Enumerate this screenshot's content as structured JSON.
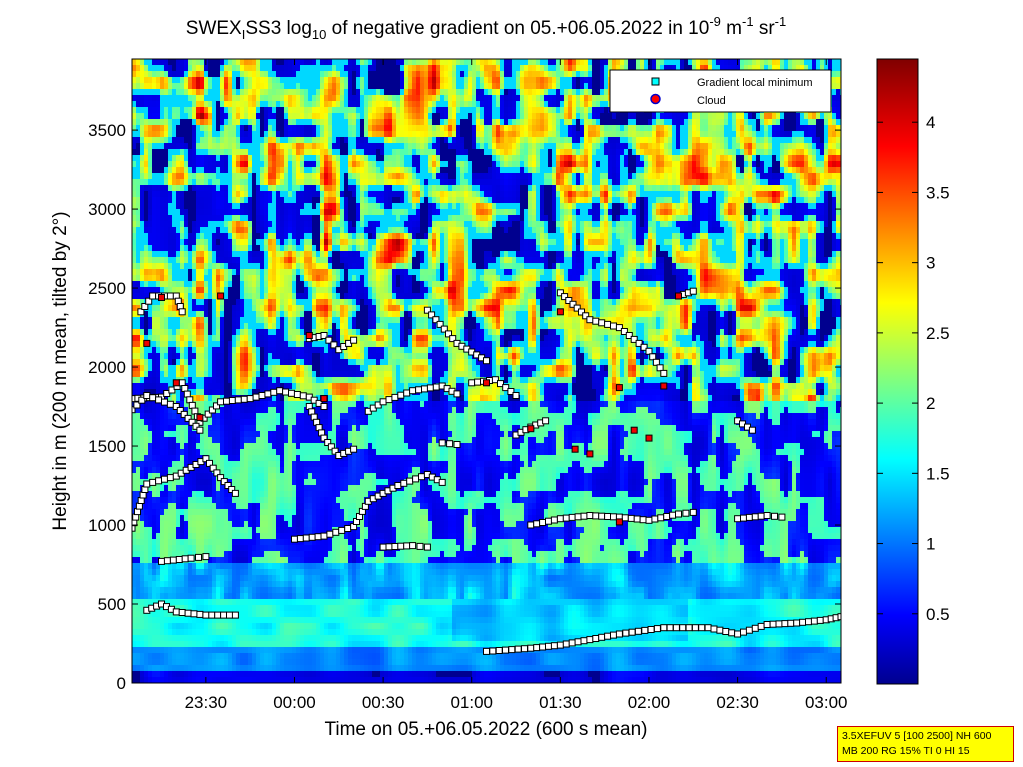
{
  "chart_data": {
    "type": "heatmap",
    "title_parts": {
      "prefix": "SWEX",
      "prefix_sub": "I",
      "name": "SS3 log",
      "log_sub": "10",
      "middle": " of negative gradient on 05.+06.05.2022 in 10",
      "exp1": "-9",
      "m": " m",
      "exp2": "-1",
      "sr": " sr",
      "exp3": "-1"
    },
    "xlabel": "Time on 05.+06.05.2022 (600 s mean)",
    "ylabel": "Height in m (200 m mean, tilted by 2°)",
    "x_range": [
      "23:05",
      "03:05"
    ],
    "x_ticks": [
      "23:30",
      "00:00",
      "00:30",
      "01:00",
      "01:30",
      "02:00",
      "02:30",
      "03:00"
    ],
    "y_range": [
      0,
      3950
    ],
    "y_ticks": [
      0,
      500,
      1000,
      1500,
      2000,
      2500,
      3000,
      3500
    ],
    "colorbar": {
      "range": [
        0,
        4.45
      ],
      "ticks": [
        "0.5",
        "1",
        "1.5",
        "2",
        "2.5",
        "3",
        "3.5",
        "4"
      ],
      "colormap": "jet"
    },
    "legend": {
      "position": "top-right",
      "entries": [
        {
          "label": "Gradient local minimum",
          "marker": "square",
          "color": "#00ffff"
        },
        {
          "label": "Cloud",
          "marker": "circle",
          "color": "#ff0000"
        }
      ]
    },
    "gradient_minimum_tracks": [
      {
        "points": [
          [
            "23:05",
            1800
          ],
          [
            "23:15",
            1810
          ],
          [
            "23:22",
            1900
          ],
          [
            "23:28",
            1650
          ],
          [
            "23:35",
            1780
          ],
          [
            "23:45",
            1800
          ],
          [
            "23:55",
            1850
          ],
          [
            "00:05",
            1810
          ],
          [
            "00:10",
            1750
          ]
        ]
      },
      {
        "points": [
          [
            "23:05",
            1730
          ],
          [
            "23:10",
            1820
          ],
          [
            "23:20",
            1750
          ],
          [
            "23:28",
            1600
          ]
        ]
      },
      {
        "points": [
          [
            "23:05",
            980
          ],
          [
            "23:10",
            1260
          ],
          [
            "23:20",
            1310
          ],
          [
            "23:30",
            1420
          ],
          [
            "23:35",
            1300
          ],
          [
            "23:40",
            1200
          ]
        ]
      },
      {
        "points": [
          [
            "23:10",
            460
          ],
          [
            "23:15",
            500
          ],
          [
            "23:20",
            450
          ],
          [
            "23:30",
            430
          ],
          [
            "23:40",
            430
          ]
        ]
      },
      {
        "points": [
          [
            "23:15",
            770
          ],
          [
            "23:25",
            790
          ],
          [
            "23:30",
            800
          ]
        ]
      },
      {
        "points": [
          [
            "23:08",
            2350
          ],
          [
            "23:12",
            2450
          ],
          [
            "23:20",
            2450
          ],
          [
            "23:22",
            2350
          ]
        ]
      },
      {
        "points": [
          [
            "00:00",
            910
          ],
          [
            "00:10",
            930
          ],
          [
            "00:20",
            990
          ],
          [
            "00:25",
            1150
          ],
          [
            "00:35",
            1250
          ],
          [
            "00:45",
            1320
          ],
          [
            "00:50",
            1270
          ]
        ]
      },
      {
        "points": [
          [
            "00:05",
            2180
          ],
          [
            "00:10",
            2200
          ],
          [
            "00:15",
            2110
          ],
          [
            "00:20",
            2170
          ]
        ]
      },
      {
        "points": [
          [
            "00:05",
            1750
          ],
          [
            "00:10",
            1550
          ],
          [
            "00:15",
            1440
          ],
          [
            "00:20",
            1480
          ]
        ]
      },
      {
        "points": [
          [
            "00:25",
            1720
          ],
          [
            "00:30",
            1780
          ],
          [
            "00:40",
            1850
          ],
          [
            "00:50",
            1880
          ],
          [
            "00:55",
            1830
          ]
        ]
      },
      {
        "points": [
          [
            "00:30",
            860
          ],
          [
            "00:40",
            870
          ],
          [
            "00:45",
            860
          ]
        ]
      },
      {
        "points": [
          [
            "00:50",
            1520
          ],
          [
            "00:55",
            1510
          ]
        ]
      },
      {
        "points": [
          [
            "00:45",
            2360
          ],
          [
            "00:55",
            2150
          ],
          [
            "01:05",
            2040
          ]
        ]
      },
      {
        "points": [
          [
            "01:00",
            1900
          ],
          [
            "01:08",
            1920
          ],
          [
            "01:15",
            1820
          ]
        ]
      },
      {
        "points": [
          [
            "01:05",
            200
          ],
          [
            "01:20",
            220
          ],
          [
            "01:30",
            240
          ],
          [
            "01:50",
            310
          ],
          [
            "02:05",
            350
          ],
          [
            "02:20",
            350
          ],
          [
            "02:30",
            310
          ],
          [
            "02:40",
            370
          ],
          [
            "02:50",
            380
          ],
          [
            "03:00",
            400
          ],
          [
            "03:05",
            420
          ]
        ]
      },
      {
        "points": [
          [
            "01:15",
            1570
          ],
          [
            "01:20",
            1620
          ],
          [
            "01:25",
            1660
          ]
        ]
      },
      {
        "points": [
          [
            "01:20",
            1000
          ],
          [
            "01:30",
            1040
          ],
          [
            "01:40",
            1060
          ],
          [
            "01:50",
            1050
          ],
          [
            "02:00",
            1030
          ],
          [
            "02:10",
            1070
          ],
          [
            "02:15",
            1080
          ]
        ]
      },
      {
        "points": [
          [
            "01:30",
            2470
          ],
          [
            "01:40",
            2300
          ],
          [
            "01:50",
            2250
          ],
          [
            "02:00",
            2100
          ],
          [
            "02:05",
            1960
          ]
        ]
      },
      {
        "points": [
          [
            "02:10",
            2450
          ],
          [
            "02:15",
            2480
          ]
        ]
      },
      {
        "points": [
          [
            "02:30",
            1040
          ],
          [
            "02:40",
            1060
          ],
          [
            "02:45",
            1050
          ]
        ]
      },
      {
        "points": [
          [
            "02:30",
            1660
          ],
          [
            "02:35",
            1600
          ]
        ]
      }
    ],
    "cloud_points": [
      [
        "23:10",
        2150
      ],
      [
        "23:15",
        2440
      ],
      [
        "23:20",
        1900
      ],
      [
        "23:28",
        1680
      ],
      [
        "23:35",
        2450
      ],
      [
        "00:05",
        2200
      ],
      [
        "00:10",
        1800
      ],
      [
        "01:05",
        1900
      ],
      [
        "01:20",
        1610
      ],
      [
        "01:30",
        2350
      ],
      [
        "01:35",
        1480
      ],
      [
        "01:40",
        1450
      ],
      [
        "01:50",
        1870
      ],
      [
        "01:55",
        1600
      ],
      [
        "02:00",
        1550
      ],
      [
        "02:05",
        1880
      ],
      [
        "02:10",
        2450
      ],
      [
        "01:50",
        1020
      ]
    ],
    "intensity_bands": [
      {
        "height_range": [
          0,
          120
        ],
        "level": "low (~0.3)"
      },
      {
        "height_range": [
          120,
          700
        ],
        "level": "medium (~1.4-2.0)"
      },
      {
        "height_range": [
          700,
          1800
        ],
        "level": "mixed (~0.5-2.2)"
      },
      {
        "height_range": [
          1800,
          3950
        ],
        "level": "mixed, peaks ~3.2"
      }
    ]
  },
  "info_box": {
    "line1": "3.5XEFUV 5 [100 2500] NH 600",
    "line2": "MB 200 RG 15% TI 0 HI 15"
  }
}
